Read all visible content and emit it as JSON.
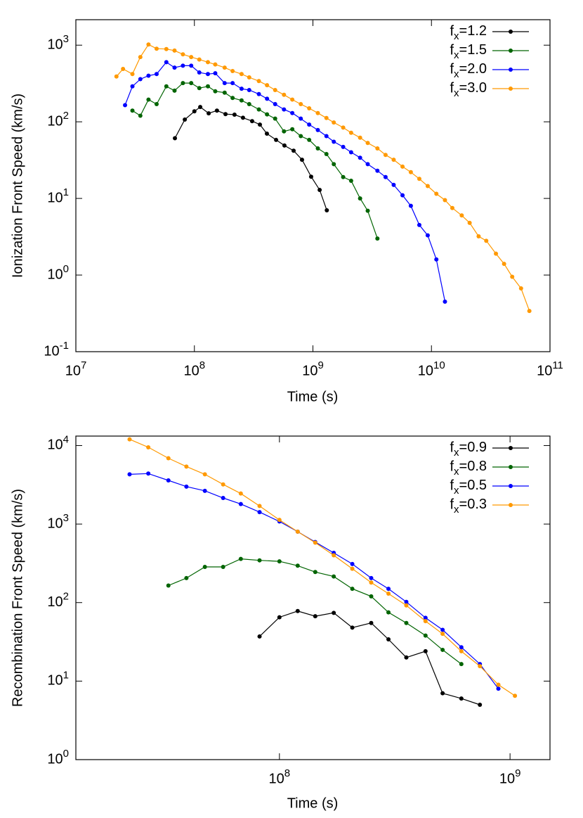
{
  "chart_data": [
    {
      "type": "line",
      "log_x": true,
      "log_y": true,
      "xlabel": "Time (s)",
      "ylabel": "Ionization Front Speed (km/s)",
      "xlim": [
        10000000.0,
        100000000000.0
      ],
      "ylim": [
        0.1,
        2150
      ],
      "xticks": [
        {
          "value": 10000000.0,
          "label": "10^7"
        },
        {
          "value": 100000000.0,
          "label": "10^8"
        },
        {
          "value": 1000000000.0,
          "label": "10^9"
        },
        {
          "value": 10000000000.0,
          "label": "10^10"
        },
        {
          "value": 100000000000.0,
          "label": "10^11"
        }
      ],
      "yticks": [
        {
          "value": 0.1,
          "label": "10^-1"
        },
        {
          "value": 1,
          "label": "10^0"
        },
        {
          "value": 10,
          "label": "10^1"
        },
        {
          "value": 100,
          "label": "10^2"
        },
        {
          "value": 1000,
          "label": "10^3"
        }
      ],
      "legend": "upper right",
      "series": [
        {
          "name": "f_x=1.2",
          "color": "#000000",
          "x": [
            68500000.0,
            83000000.0,
            100000000.0,
            112000000.0,
            132000000.0,
            155000000.0,
            183000000.0,
            218000000.0,
            257000000.0,
            307000000.0,
            357000000.0,
            409000000.0,
            489000000.0,
            575000000.0,
            687000000.0,
            809000000.0,
            966000000.0,
            1140000000.0,
            1310000000.0
          ],
          "values": [
            61,
            107,
            137,
            156,
            129,
            140,
            126,
            124,
            113,
            102,
            92,
            70,
            58,
            49,
            42,
            32,
            19.2,
            12.9,
            7.0
          ]
        },
        {
          "name": "f_x=1.5",
          "color": "#006400",
          "x": [
            30000000.0,
            35000000.0,
            41000000.0,
            48000000.0,
            58000000.0,
            68000000.0,
            80000000.0,
            94000000.0,
            110000000.0,
            130000000.0,
            150000000.0,
            180000000.0,
            210000000.0,
            250000000.0,
            290000000.0,
            350000000.0,
            410000000.0,
            480000000.0,
            570000000.0,
            670000000.0,
            790000000.0,
            930000000.0,
            1100000000.0,
            1300000000.0,
            1500000000.0,
            1800000000.0,
            2100000000.0,
            2500000000.0,
            2900000000.0,
            3500000000.0
          ],
          "values": [
            140,
            120,
            195,
            170,
            290,
            255,
            320,
            320,
            275,
            290,
            250,
            240,
            205,
            190,
            170,
            145,
            125,
            110,
            75,
            80,
            65,
            58,
            45,
            38,
            28,
            19,
            17,
            10,
            6.9,
            3.0
          ]
        },
        {
          "name": "f_x=2.0",
          "color": "#0000ff",
          "x": [
            26000000.0,
            30000000.0,
            35000000.0,
            41000000.0,
            48000000.0,
            58000000.0,
            68000000.0,
            80000000.0,
            94000000.0,
            110000000.0,
            130000000.0,
            150000000.0,
            180000000.0,
            210000000.0,
            250000000.0,
            290000000.0,
            350000000.0,
            410000000.0,
            480000000.0,
            570000000.0,
            670000000.0,
            790000000.0,
            930000000.0,
            1100000000.0,
            1300000000.0,
            1500000000.0,
            1800000000.0,
            2100000000.0,
            2500000000.0,
            2900000000.0,
            3500000000.0,
            4100000000.0,
            4800000000.0,
            5700000000.0,
            6700000000.0,
            7900000000.0,
            9300000000.0,
            11000000000.0,
            13000000000.0
          ],
          "values": [
            165,
            290,
            360,
            400,
            420,
            600,
            510,
            540,
            540,
            440,
            420,
            430,
            320,
            320,
            270,
            260,
            230,
            200,
            170,
            145,
            130,
            110,
            92,
            78,
            65,
            55,
            47,
            40,
            34,
            28,
            23,
            19,
            15,
            11,
            8,
            4.5,
            3.3,
            1.6,
            0.45
          ]
        },
        {
          "name": "f_x=3.0",
          "color": "#ff9900",
          "x": [
            22000000.0,
            25000000.0,
            30000000.0,
            35000000.0,
            41000000.0,
            48000000.0,
            58000000.0,
            68000000.0,
            80000000.0,
            94000000.0,
            110000000.0,
            130000000.0,
            150000000.0,
            180000000.0,
            210000000.0,
            250000000.0,
            290000000.0,
            350000000.0,
            410000000.0,
            480000000.0,
            570000000.0,
            670000000.0,
            790000000.0,
            930000000.0,
            1100000000.0,
            1300000000.0,
            1500000000.0,
            1800000000.0,
            2100000000.0,
            2500000000.0,
            2900000000.0,
            3500000000.0,
            4100000000.0,
            4800000000.0,
            5700000000.0,
            6700000000.0,
            7900000000.0,
            9300000000.0,
            11000000000.0,
            13000000000.0,
            15000000000.0,
            18000000000.0,
            21000000000.0,
            25000000000.0,
            29000000000.0,
            35000000000.0,
            41000000000.0,
            48000000000.0,
            57000000000.0,
            67000000000.0
          ],
          "values": [
            390,
            490,
            420,
            700,
            1020,
            900,
            890,
            850,
            760,
            700,
            650,
            600,
            560,
            510,
            460,
            420,
            380,
            340,
            300,
            260,
            225,
            195,
            170,
            150,
            130,
            112,
            98,
            84,
            72,
            62,
            53,
            45,
            37,
            32,
            26,
            22,
            18,
            14.5,
            11.5,
            9.5,
            7.5,
            6,
            4.8,
            3.2,
            2.8,
            1.9,
            1.4,
            0.95,
            0.67,
            0.34
          ]
        }
      ]
    },
    {
      "type": "line",
      "log_x": true,
      "log_y": true,
      "xlabel": "Time (s)",
      "ylabel": "Recombination Front Speed (km/s)",
      "xlim": [
        13100000.0,
        1490000000.0
      ],
      "ylim": [
        1,
        13200
      ],
      "xticks": [
        {
          "value": 100000000.0,
          "label": "10^8"
        },
        {
          "value": 1000000000.0,
          "label": "10^9"
        }
      ],
      "yticks": [
        {
          "value": 1,
          "label": "10^0"
        },
        {
          "value": 10,
          "label": "10^1"
        },
        {
          "value": 100,
          "label": "10^2"
        },
        {
          "value": 1000,
          "label": "10^3"
        },
        {
          "value": 10000,
          "label": "10^4"
        }
      ],
      "legend": "upper right",
      "series": [
        {
          "name": "f_x=0.9",
          "color": "#000000",
          "x": [
            82000000.0,
            100000000.0,
            120000000.0,
            143000000.0,
            172000000.0,
            207000000.0,
            250000000.0,
            297000000.0,
            355000000.0,
            430000000.0,
            510000000.0,
            615000000.0,
            740000000.0
          ],
          "values": [
            37,
            65,
            78,
            67,
            74,
            48,
            55,
            34,
            20,
            24,
            7,
            6,
            5
          ]
        },
        {
          "name": "f_x=0.8",
          "color": "#006400",
          "x": [
            33000000.0,
            39500000.0,
            47500000.0,
            57000000.0,
            68000000.0,
            82000000.0,
            100000000.0,
            120000000.0,
            143000000.0,
            172000000.0,
            207000000.0,
            250000000.0,
            297000000.0,
            355000000.0,
            430000000.0,
            510000000.0,
            615000000.0
          ],
          "values": [
            165,
            205,
            285,
            285,
            360,
            345,
            335,
            295,
            245,
            215,
            150,
            120,
            75,
            55,
            38,
            25,
            16.5
          ]
        },
        {
          "name": "f_x=0.5",
          "color": "#0000ff",
          "x": [
            22400000.0,
            27000000.0,
            33000000.0,
            39500000.0,
            47500000.0,
            57000000.0,
            68000000.0,
            82000000.0,
            100000000.0,
            120000000.0,
            143000000.0,
            172000000.0,
            207000000.0,
            250000000.0,
            297000000.0,
            355000000.0,
            430000000.0,
            510000000.0,
            615000000.0,
            740000000.0,
            890000000.0
          ],
          "values": [
            4300,
            4400,
            3600,
            3000,
            2650,
            2150,
            1800,
            1420,
            1080,
            800,
            590,
            430,
            310,
            205,
            150,
            102,
            64,
            45,
            27,
            16.5,
            8
          ]
        },
        {
          "name": "f_x=0.3",
          "color": "#ff9900",
          "x": [
            22400000.0,
            27000000.0,
            33000000.0,
            39500000.0,
            47500000.0,
            57000000.0,
            68000000.0,
            82000000.0,
            100000000.0,
            120000000.0,
            143000000.0,
            172000000.0,
            207000000.0,
            250000000.0,
            297000000.0,
            355000000.0,
            430000000.0,
            510000000.0,
            615000000.0,
            740000000.0,
            890000000.0,
            1050000000.0
          ],
          "values": [
            12000,
            9500,
            6900,
            5400,
            4300,
            3200,
            2450,
            1700,
            1130,
            800,
            580,
            400,
            270,
            180,
            130,
            92,
            58,
            40,
            24,
            15.5,
            9,
            6.5
          ]
        }
      ]
    }
  ]
}
